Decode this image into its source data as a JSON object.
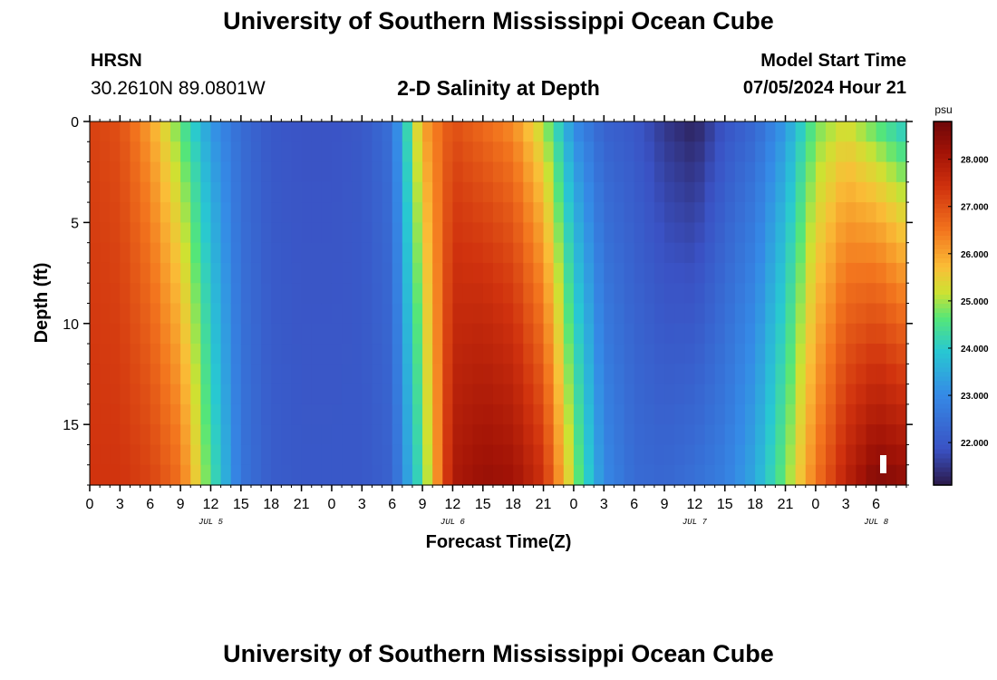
{
  "header": {
    "title": "University of Southern Mississippi Ocean Cube",
    "station": "HRSN",
    "coords": "30.2610N  89.0801W",
    "subtitle": "2-D Salinity at Depth",
    "start_label": "Model Start Time",
    "start_value": "07/05/2024 Hour 21"
  },
  "footer": {
    "title": "University of Southern Mississippi Ocean Cube"
  },
  "colors": {
    "low": "#2a1a4a",
    "mid_low": "#3c63d6",
    "mid": "#2fd8b0",
    "mid_high": "#f8c13a",
    "high": "#7a0a0a"
  },
  "chart_data": {
    "type": "heatmap",
    "title": "2-D Salinity at Depth",
    "xlabel": "Forecast Time(Z)",
    "ylabel": "Depth (ft)",
    "x_hours_range": [
      0,
      81
    ],
    "ylim": [
      0,
      18
    ],
    "x_tick_labels": [
      "0",
      "3",
      "6",
      "9",
      "12",
      "15",
      "18",
      "21",
      "0",
      "3",
      "6",
      "9",
      "12",
      "15",
      "18",
      "21",
      "0",
      "3",
      "6",
      "9",
      "12",
      "15",
      "18",
      "21",
      "0",
      "3",
      "6"
    ],
    "y_tick_labels": [
      "0",
      "5",
      "10",
      "15"
    ],
    "y_tick_values": [
      0,
      5,
      10,
      15
    ],
    "date_labels": [
      {
        "label": "JUL 5",
        "hour": 12
      },
      {
        "label": "JUL 6",
        "hour": 36
      },
      {
        "label": "JUL 7",
        "hour": 60
      },
      {
        "label": "JUL 8",
        "hour": 78
      }
    ],
    "colorbar": {
      "unit": "psu",
      "range": [
        21.1,
        28.8
      ],
      "ticks": [
        "22.000",
        "23.000",
        "24.000",
        "25.000",
        "26.000",
        "27.000",
        "28.000"
      ],
      "tick_values": [
        22,
        23,
        24,
        25,
        26,
        27,
        28
      ]
    },
    "surface_profile_hours": [
      0,
      3,
      6,
      9,
      12,
      15,
      18,
      21,
      24,
      27,
      30,
      33,
      36,
      39,
      42,
      45,
      48,
      51,
      54,
      57,
      60,
      63,
      66,
      69,
      72,
      75,
      78,
      81
    ],
    "surface_profile_psu": [
      27.2,
      27.0,
      26.0,
      24.6,
      23.2,
      22.4,
      22.0,
      21.9,
      21.9,
      22.0,
      22.5,
      26.0,
      27.0,
      26.6,
      26.2,
      25.0,
      23.0,
      22.2,
      22.0,
      21.5,
      21.2,
      21.9,
      22.3,
      23.2,
      24.7,
      25.2,
      24.5,
      23.8
    ],
    "bottom_profile_hours": [
      0,
      3,
      6,
      9,
      12,
      15,
      18,
      21,
      24,
      27,
      30,
      33,
      36,
      39,
      42,
      45,
      48,
      51,
      54,
      57,
      60,
      63,
      66,
      69,
      72,
      75,
      78,
      81
    ],
    "bottom_profile_psu": [
      27.4,
      27.4,
      27.2,
      26.6,
      24.5,
      22.6,
      22.1,
      22.0,
      22.0,
      22.0,
      22.2,
      24.5,
      28.0,
      28.3,
      28.2,
      27.5,
      25.0,
      23.0,
      22.4,
      22.3,
      22.5,
      22.8,
      23.5,
      24.8,
      26.5,
      27.8,
      28.6,
      28.4
    ]
  }
}
